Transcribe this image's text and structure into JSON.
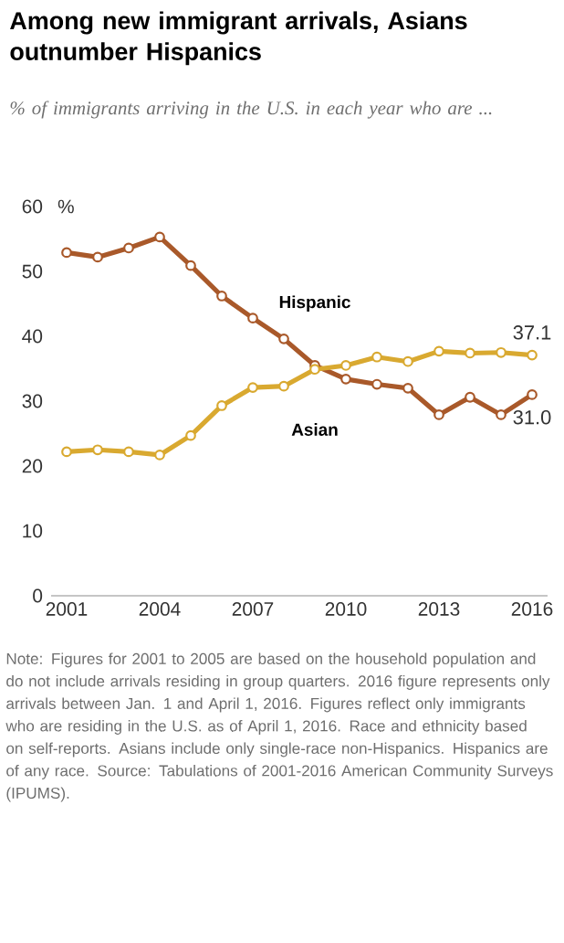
{
  "chart_data": {
    "type": "line",
    "title": "Among new immigrant arrivals, Asians outnumber Hispanics",
    "subtitle": "% of immigrants arriving in the U.S. in each year who are ...",
    "ylabel": "%",
    "x": [
      2001,
      2002,
      2003,
      2004,
      2005,
      2006,
      2007,
      2008,
      2009,
      2010,
      2011,
      2012,
      2013,
      2014,
      2015,
      2016
    ],
    "series": [
      {
        "name": "Hispanic",
        "color": "#a9592a",
        "values": [
          52.9,
          52.2,
          53.6,
          55.3,
          50.9,
          46.2,
          42.8,
          39.6,
          35.5,
          33.4,
          32.6,
          32.0,
          27.9,
          30.6,
          27.9,
          31.0
        ],
        "value_labels": [
          null,
          null,
          null,
          null,
          null,
          null,
          null,
          null,
          null,
          null,
          null,
          null,
          null,
          null,
          null,
          "31.0"
        ]
      },
      {
        "name": "Asian",
        "color": "#d9a930",
        "values": [
          22.2,
          22.5,
          22.2,
          21.7,
          24.7,
          29.3,
          32.1,
          32.3,
          34.9,
          35.5,
          36.8,
          36.1,
          37.7,
          37.4,
          37.5,
          37.1
        ],
        "value_labels": [
          null,
          null,
          null,
          null,
          null,
          null,
          null,
          null,
          null,
          null,
          null,
          null,
          null,
          null,
          null,
          "37.1"
        ]
      }
    ],
    "xlim": [
      2000.5,
      2016.5
    ],
    "xticks": [
      2001,
      2004,
      2007,
      2010,
      2013,
      2016
    ],
    "ylim": [
      0,
      60
    ],
    "yticks": [
      0,
      10,
      20,
      30,
      40,
      50,
      60
    ],
    "marker": "circle",
    "grid": false,
    "annotations": [
      "Note: Figures for 2001 to 2005 are based on the household population and do not include arrivals residing in group quarters. 2016 figure represents only arrivals between Jan. 1 and April 1, 2016. Figures reflect only immigrants who are residing in the U.S. as of April 1, 2016. Race and ethnicity based on self-reports. Asians include only single-race non-Hispanics. Hispanics are of any race.",
      "Source: Tabulations of 2001-2016 American Community Surveys (IPUMS)."
    ]
  }
}
